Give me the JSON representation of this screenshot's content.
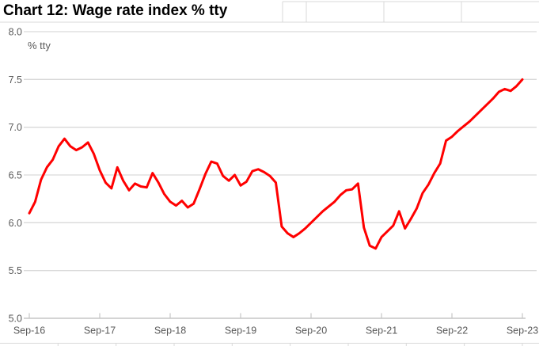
{
  "title": "Chart 12: Wage rate index % tty",
  "chart_data": {
    "type": "line",
    "title": "Chart 12: Wage rate index % tty",
    "unit_annotation": "% tty",
    "x_tick_labels": [
      "Sep-16",
      "Sep-17",
      "Sep-18",
      "Sep-19",
      "Sep-20",
      "Sep-21",
      "Sep-22",
      "Sep-23"
    ],
    "y_tick_labels": [
      "8.0",
      "7.5",
      "7.0",
      "6.5",
      "6.0",
      "5.5",
      "5.0"
    ],
    "ylim": [
      5.0,
      8.0
    ],
    "y_step": 0.5,
    "grid": "horizontal",
    "legend": "none",
    "frequency": "monthly",
    "colors": {
      "line": "#FF0000",
      "gridline": "#D9D9D9",
      "axis": "#C6C6C6",
      "axis_label": "#595959",
      "title_text": "#000000",
      "background": "#FFFFFF"
    },
    "series": [
      {
        "name": "Wage rate index % tty",
        "color": "#FF0000",
        "values": [
          6.1,
          6.22,
          6.45,
          6.58,
          6.66,
          6.8,
          6.88,
          6.8,
          6.76,
          6.79,
          6.84,
          6.72,
          6.55,
          6.42,
          6.36,
          6.58,
          6.44,
          6.34,
          6.41,
          6.38,
          6.37,
          6.52,
          6.42,
          6.3,
          6.22,
          6.18,
          6.23,
          6.16,
          6.2,
          6.35,
          6.51,
          6.64,
          6.62,
          6.49,
          6.44,
          6.5,
          6.39,
          6.43,
          6.54,
          6.56,
          6.53,
          6.49,
          6.42,
          5.96,
          5.89,
          5.85,
          5.89,
          5.94,
          6.0,
          6.06,
          6.12,
          6.17,
          6.22,
          6.29,
          6.34,
          6.35,
          6.41,
          5.95,
          5.76,
          5.73,
          5.85,
          5.91,
          5.97,
          6.12,
          5.94,
          6.04,
          6.15,
          6.31,
          6.4,
          6.52,
          6.62,
          6.86,
          6.9,
          6.96,
          7.01,
          7.06,
          7.12,
          7.18,
          7.24,
          7.3,
          7.37,
          7.4,
          7.38,
          7.43,
          7.5
        ]
      }
    ]
  }
}
